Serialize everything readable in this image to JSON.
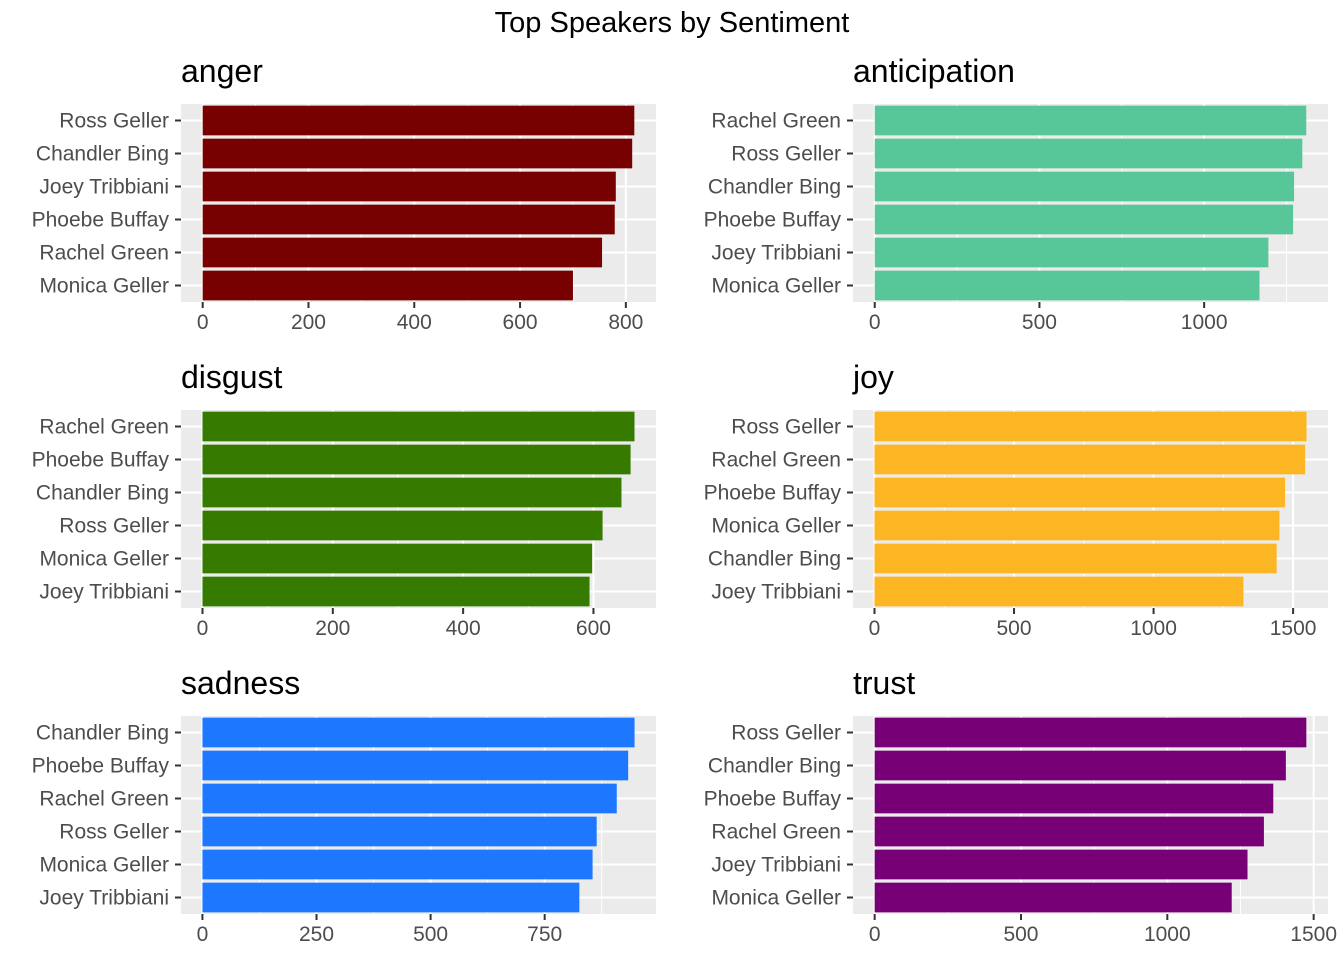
{
  "title": "Top Speakers by Sentiment",
  "chart_data": [
    {
      "type": "bar",
      "orientation": "horizontal",
      "title": "anger",
      "color": "#770000",
      "categories": [
        "Ross Geller",
        "Chandler Bing",
        "Joey Tribbiani",
        "Phoebe Buffay",
        "Rachel Green",
        "Monica Geller"
      ],
      "values": [
        816,
        812,
        781,
        779,
        755,
        700
      ],
      "xticks": [
        0,
        200,
        400,
        600,
        800
      ],
      "xlim": [
        -41,
        857
      ],
      "xlabel": "",
      "ylabel": "",
      "grid": true
    },
    {
      "type": "bar",
      "orientation": "horizontal",
      "title": "anticipation",
      "color": "#57C698",
      "categories": [
        "Rachel Green",
        "Ross Geller",
        "Chandler Bing",
        "Phoebe Buffay",
        "Joey Tribbiani",
        "Monica Geller"
      ],
      "values": [
        1310,
        1298,
        1273,
        1270,
        1195,
        1168
      ],
      "xticks": [
        0,
        500,
        1000
      ],
      "xlim": [
        -66,
        1376
      ],
      "xlabel": "",
      "ylabel": "",
      "grid": true
    },
    {
      "type": "bar",
      "orientation": "horizontal",
      "title": "disgust",
      "color": "#367A00",
      "categories": [
        "Rachel Green",
        "Phoebe Buffay",
        "Chandler Bing",
        "Ross Geller",
        "Monica Geller",
        "Joey Tribbiani"
      ],
      "values": [
        663,
        657,
        643,
        614,
        598,
        594
      ],
      "xticks": [
        0,
        200,
        400,
        600
      ],
      "xlim": [
        -33,
        696
      ],
      "xlabel": "",
      "ylabel": "",
      "grid": true
    },
    {
      "type": "bar",
      "orientation": "horizontal",
      "title": "joy",
      "color": "#FDB623",
      "categories": [
        "Ross Geller",
        "Rachel Green",
        "Phoebe Buffay",
        "Monica Geller",
        "Chandler Bing",
        "Joey Tribbiani"
      ],
      "values": [
        1548,
        1543,
        1471,
        1451,
        1441,
        1322
      ],
      "xticks": [
        0,
        500,
        1000,
        1500
      ],
      "xlim": [
        -77,
        1625
      ],
      "xlabel": "",
      "ylabel": "",
      "grid": true
    },
    {
      "type": "bar",
      "orientation": "horizontal",
      "title": "sadness",
      "color": "#1E78FF",
      "categories": [
        "Chandler Bing",
        "Phoebe Buffay",
        "Rachel Green",
        "Ross Geller",
        "Monica Geller",
        "Joey Tribbiani"
      ],
      "values": [
        947,
        933,
        908,
        864,
        855,
        826
      ],
      "xticks": [
        0,
        250,
        500,
        750
      ],
      "xlim": [
        -47,
        994
      ],
      "xlabel": "",
      "ylabel": "",
      "grid": true
    },
    {
      "type": "bar",
      "orientation": "horizontal",
      "title": "trust",
      "color": "#770077",
      "categories": [
        "Ross Geller",
        "Chandler Bing",
        "Phoebe Buffay",
        "Rachel Green",
        "Joey Tribbiani",
        "Monica Geller"
      ],
      "values": [
        1475,
        1405,
        1362,
        1330,
        1274,
        1220
      ],
      "xticks": [
        0,
        500,
        1000,
        1500
      ],
      "xlim": [
        -74,
        1549
      ],
      "xlabel": "",
      "ylabel": "",
      "grid": true
    }
  ]
}
